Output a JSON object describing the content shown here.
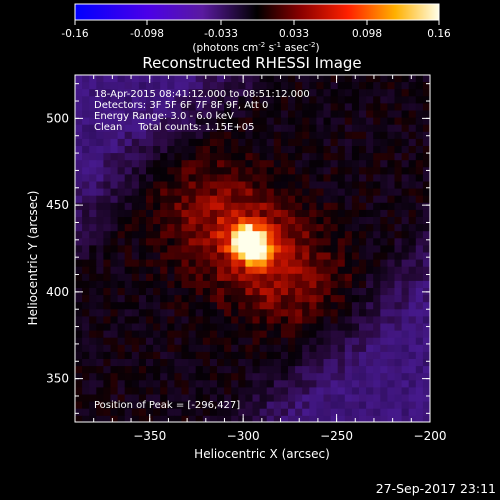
{
  "colorbar": {
    "ticks": [
      "-0.16",
      "-0.098",
      "-0.033",
      "0.033",
      "0.098",
      "0.16"
    ],
    "units_prefix": "(photons cm",
    "units_exp1": "-2",
    "units_mid": " s",
    "units_exp2": "-1",
    "units_mid2": " asec",
    "units_exp3": "-2",
    "units_suffix": ")"
  },
  "chart_data": {
    "type": "heatmap",
    "title": "Reconstructed RHESSI Image",
    "xlabel": "Heliocentric X (arcsec)",
    "ylabel": "Heliocentric Y (arcsec)",
    "xlim": [
      -390,
      -200
    ],
    "ylim": [
      325,
      525
    ],
    "x_ticks": [
      -350,
      -300,
      -250,
      -200
    ],
    "y_ticks": [
      350,
      400,
      450,
      500
    ],
    "colorbar_range": [
      -0.16,
      0.16
    ],
    "annotations": [
      "18-Apr-2015 08:41:12.000 to 08:51:12.000",
      "Detectors: 3F 5F 6F 7F 8F 9F, Att 0",
      "Energy Range: 3.0 - 6.0 keV",
      "Clean     Total counts: 1.15E+05"
    ],
    "peak_label": "Position of Peak = [-296,427]",
    "peak": [
      -296,
      427
    ],
    "grid": false
  },
  "footer": {
    "timestamp": "27-Sep-2017 23:11"
  }
}
